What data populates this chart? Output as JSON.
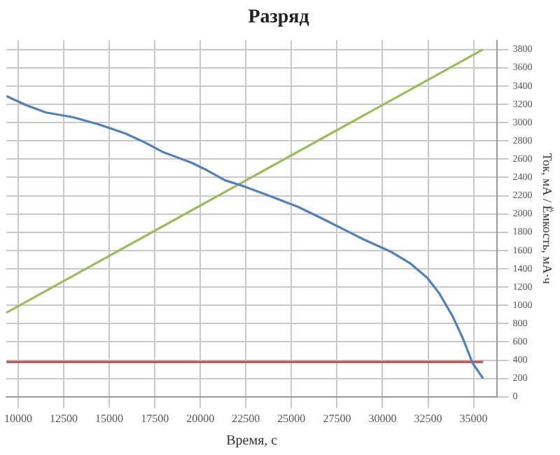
{
  "chart_data": {
    "type": "line",
    "title": "Разряд",
    "xlabel": "Время, с",
    "ylabel": "Ток, мА / Ёмкость, мА·ч",
    "xlim": [
      9350,
      36300
    ],
    "xticks": [
      10000,
      12500,
      15000,
      17500,
      20000,
      22500,
      25000,
      27500,
      30000,
      32500,
      35000
    ],
    "ylim": [
      0,
      3900
    ],
    "yticks": [
      0,
      200,
      400,
      600,
      800,
      1000,
      1200,
      1400,
      1600,
      1800,
      2000,
      2200,
      2400,
      2600,
      2800,
      3000,
      3200,
      3400,
      3600,
      3800
    ],
    "grid": true,
    "legend": false,
    "marker": "none",
    "line_style": "solid",
    "series": [
      {
        "color": "#4f81bd",
        "x": [
          9350,
          10440,
          11530,
          12980,
          14430,
          15890,
          16980,
          17920,
          19520,
          20250,
          21340,
          22290,
          23890,
          25340,
          26790,
          27880,
          28980,
          30430,
          31520,
          32460,
          33120,
          33850,
          34430,
          34940,
          35520
        ],
        "values": [
          3290,
          3190,
          3110,
          3060,
          2980,
          2880,
          2780,
          2680,
          2560,
          2490,
          2370,
          2310,
          2190,
          2080,
          1940,
          1830,
          1720,
          1590,
          1460,
          1300,
          1130,
          880,
          630,
          370,
          200
        ]
      },
      {
        "color": "#9bbb59",
        "x": [
          9350,
          35520
        ],
        "values": [
          920,
          3800
        ]
      },
      {
        "color": "#c0504d",
        "x": [
          9350,
          35520
        ],
        "values": [
          380,
          380
        ]
      }
    ]
  }
}
